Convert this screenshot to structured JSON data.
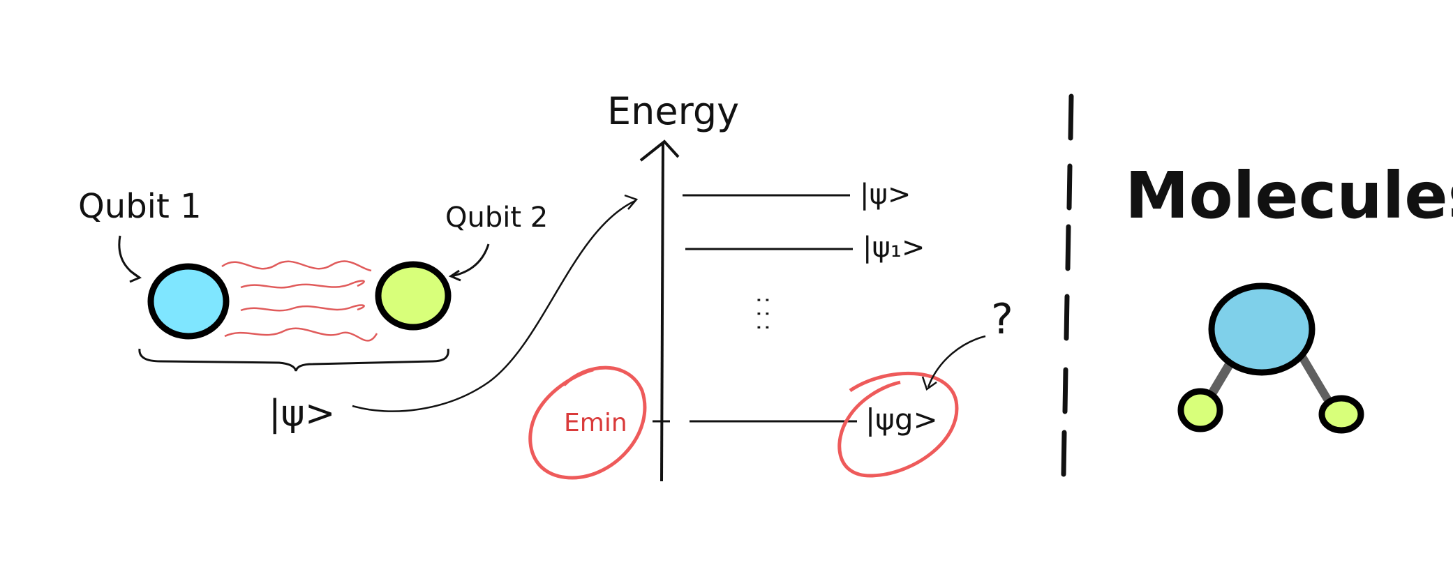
{
  "qubits": {
    "qubit1_label": "Qubit 1",
    "qubit2_label": "Qubit 2",
    "state_label": "|ψ>",
    "qubit1_color": "#7fe6ff",
    "qubit2_color": "#d8ff7a",
    "interaction_color": "#e05a5a"
  },
  "energy_diagram": {
    "axis_label": "Energy",
    "levels": [
      {
        "label": "|ψ>"
      },
      {
        "label": "|ψ₁>"
      },
      {
        "label": "|ψg>"
      }
    ],
    "dots": ": : :",
    "min_label": "Emin",
    "question": "?",
    "highlight_color": "#ee5a5a"
  },
  "molecules": {
    "title": "Molecules",
    "center_atom_color": "#7fd0ea",
    "small_atom_color": "#d8ff7a",
    "bond_color": "#606060"
  }
}
